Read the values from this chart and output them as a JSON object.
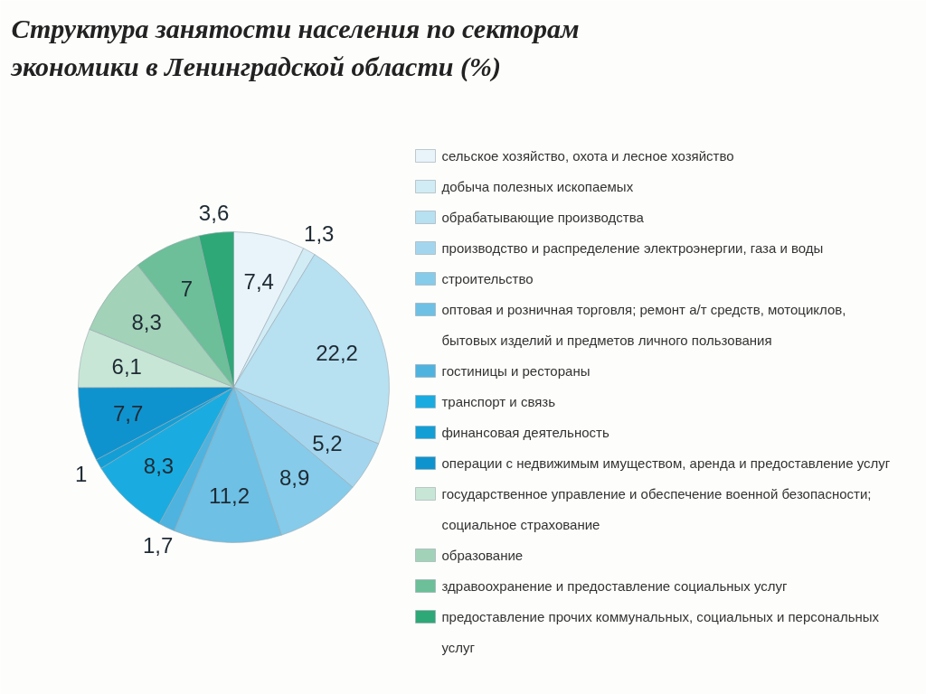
{
  "chart_data": {
    "type": "pie",
    "title": "Структура занятости населения по секторам экономики в Ленинградской области (%)",
    "categories": [
      "сельское хозяйство, охота и лесное хозяйство",
      "добыча полезных ископаемых",
      "обрабатывающие производства",
      "производство и распределение электроэнергии, газа и воды",
      "строительство",
      "оптовая и розничная торговля; ремонт а/т средств, мотоциклов, бытовых изделий и предметов личного пользования",
      "гостиницы и рестораны",
      "транспорт и связь",
      "финансовая деятельность",
      "операции с недвижимым имуществом, аренда и предоставление услуг",
      "государственное управление и обеспечение военной безопасности; социальное страхование",
      "образование",
      "здравоохранение и предоставление социальных услуг",
      "предоставление прочих коммунальных, социальных и персональных услуг"
    ],
    "values": [
      7.4,
      1.3,
      22.2,
      5.2,
      8.9,
      11.2,
      1.7,
      8.3,
      1,
      7.7,
      6.1,
      8.3,
      7,
      3.6
    ],
    "value_labels": [
      "7,4",
      "1,3",
      "22,2",
      "5,2",
      "8,9",
      "11,2",
      "1,7",
      "8,3",
      "1",
      "7,7",
      "6,1",
      "8,3",
      "7",
      "3,6"
    ],
    "colors": [
      "#e8f4fa",
      "#d2ecf5",
      "#b7e0f1",
      "#a3d6ee",
      "#86cbea",
      "#6ec0e4",
      "#4fb3df",
      "#1aace0",
      "#139fd6",
      "#0f93cf",
      "#c8e6d6",
      "#a2d2b8",
      "#6cbf98",
      "#2ea876"
    ],
    "legend": "right"
  }
}
